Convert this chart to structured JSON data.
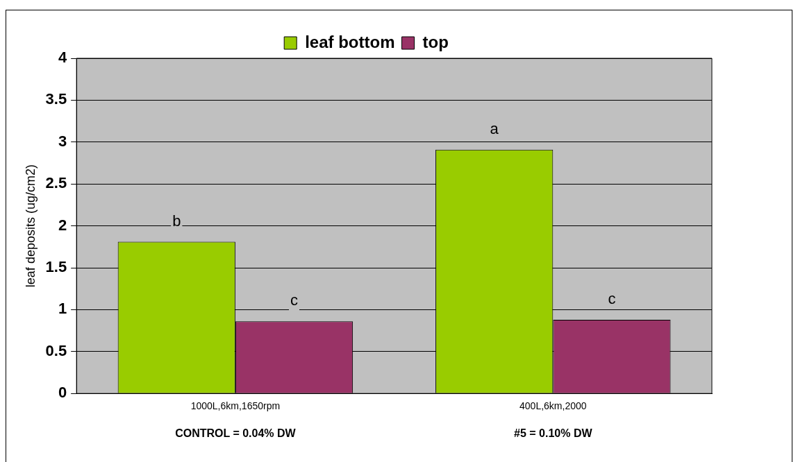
{
  "chart_data": {
    "type": "bar",
    "ylabel": "leaf deposits (ug/cm2)",
    "categories": [
      "1000L,6km,1650rpm",
      "400L,6km,2000"
    ],
    "series": [
      {
        "name": "leaf bottom",
        "color": "#99cc00",
        "values": [
          1.81,
          2.91
        ],
        "value_labels": [
          "b",
          "a"
        ]
      },
      {
        "name": "top",
        "color": "#993366",
        "values": [
          0.86,
          0.88
        ],
        "value_labels": [
          "c",
          "c"
        ]
      }
    ],
    "ylim": [
      0,
      4
    ],
    "yticks": [
      0,
      0.5,
      1,
      1.5,
      2,
      2.5,
      3,
      3.5,
      4
    ],
    "grid": "y",
    "legend": "top",
    "annotations": [
      "CONTROL = 0.04% DW",
      "#5 = 0.10% DW"
    ]
  }
}
